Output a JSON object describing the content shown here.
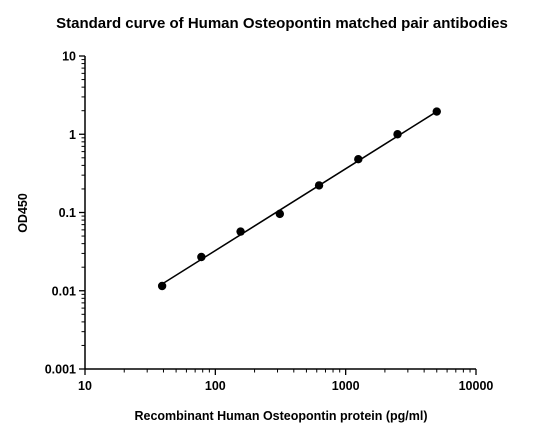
{
  "chart_data": {
    "type": "scatter",
    "title": "Standard curve of Human Osteopontin matched pair antibodies",
    "xlabel": "Recombinant Human Osteopontin protein (pg/ml)",
    "ylabel": "OD450",
    "x_scale": "log",
    "y_scale": "log",
    "xlim": [
      10,
      10000
    ],
    "ylim": [
      0.001,
      10
    ],
    "x_ticks": [
      {
        "value": 10,
        "label": "10"
      },
      {
        "value": 100,
        "label": "100"
      },
      {
        "value": 1000,
        "label": "1000"
      },
      {
        "value": 10000,
        "label": "10000"
      }
    ],
    "y_ticks": [
      {
        "value": 0.001,
        "label": "0.001"
      },
      {
        "value": 0.01,
        "label": "0.01"
      },
      {
        "value": 0.1,
        "label": "0.1"
      },
      {
        "value": 1,
        "label": "1"
      },
      {
        "value": 10,
        "label": "10"
      }
    ],
    "grid": false,
    "legend": "none",
    "series": [
      {
        "points": [
          {
            "x": 39.0625,
            "y": 0.0115
          },
          {
            "x": 78.125,
            "y": 0.027
          },
          {
            "x": 156.25,
            "y": 0.057
          },
          {
            "x": 312.5,
            "y": 0.096
          },
          {
            "x": 625,
            "y": 0.222
          },
          {
            "x": 1250,
            "y": 0.48
          },
          {
            "x": 2500,
            "y": 1.0
          },
          {
            "x": 5000,
            "y": 1.95
          }
        ],
        "fit_line": {
          "from": {
            "x": 39.0625,
            "y": 0.0122
          },
          "to": {
            "x": 5000,
            "y": 1.95
          }
        },
        "color": "#000000"
      }
    ]
  }
}
